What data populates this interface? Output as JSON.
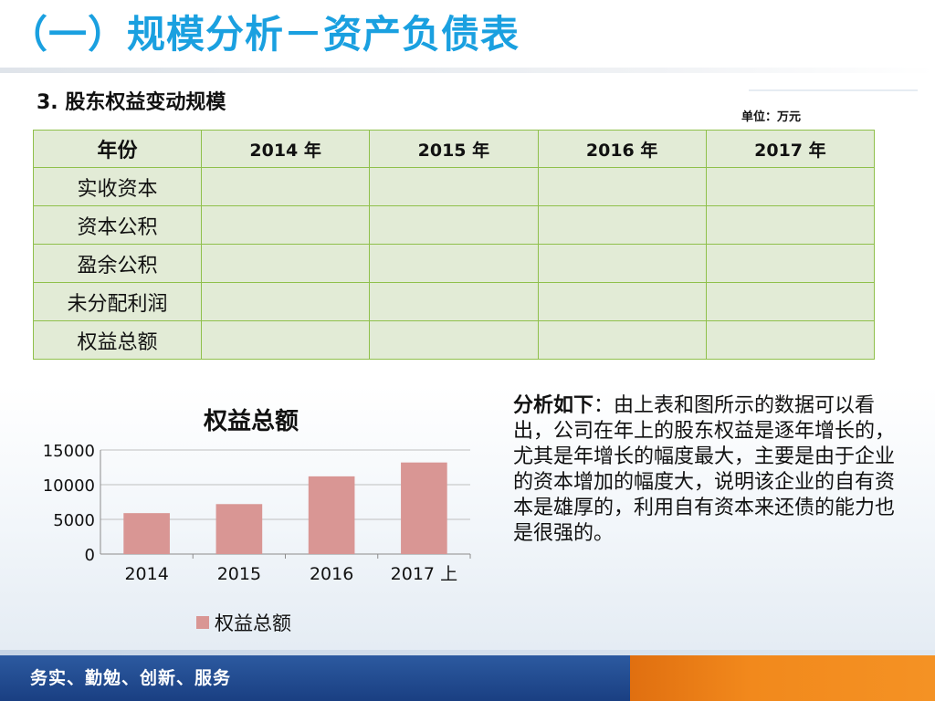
{
  "slide": {
    "title": "（一）规模分析－资产负债表",
    "subtitle": "3. 股东权益变动规模",
    "unit": "单位：万元",
    "footer": "务实、勤勉、创新、服务"
  },
  "table": {
    "headers": [
      "年份",
      "2014 年",
      "2015 年",
      "2016 年",
      "2017 年"
    ],
    "rows": [
      {
        "label": "实收资本",
        "values": [
          "",
          "",
          "",
          ""
        ]
      },
      {
        "label": "资本公积",
        "values": [
          "",
          "",
          "",
          ""
        ]
      },
      {
        "label": "盈余公积",
        "values": [
          "",
          "",
          "",
          ""
        ]
      },
      {
        "label": "未分配利润",
        "values": [
          "",
          "",
          "",
          ""
        ]
      },
      {
        "label": "权益总额",
        "values": [
          "",
          "",
          "",
          ""
        ]
      }
    ]
  },
  "analysis": {
    "heading": "分析如下",
    "body": "：由上表和图所示的数据可以看出，公司在年上的股东权益是逐年增长的，尤其是年增长的幅度最大，主要是由于企业的资本增加的幅度大，说明该企业的自有资本是雄厚的，利用自有资本来还债的能力也是很强的。"
  },
  "chart_data": {
    "type": "bar",
    "title": "权益总额",
    "categories": [
      "2014",
      "2015",
      "2016",
      "2017 上"
    ],
    "series": [
      {
        "name": "权益总额",
        "values": [
          5900,
          7200,
          11200,
          13200
        ],
        "color": "#d99694"
      }
    ],
    "ylim": [
      0,
      15000
    ],
    "yticks": [
      0,
      5000,
      10000,
      15000
    ],
    "grid": true,
    "legend": "bottom"
  }
}
